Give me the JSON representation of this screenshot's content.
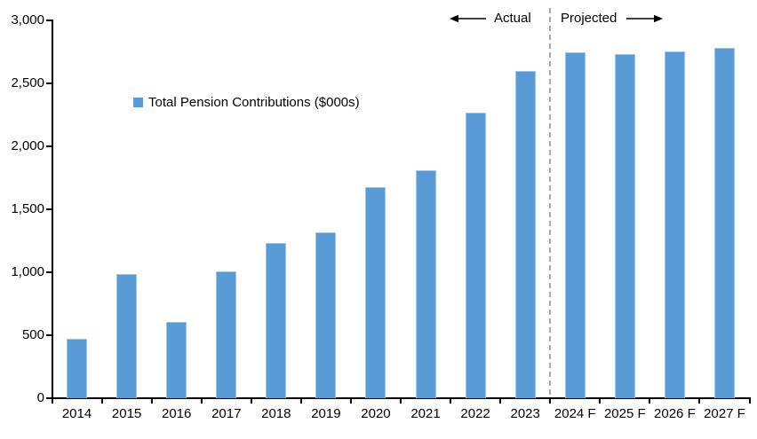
{
  "chart_data": {
    "type": "bar",
    "title": "",
    "legend_label": "Total Pension Contributions ($000s)",
    "categories": [
      "2014",
      "2015",
      "2016",
      "2017",
      "2018",
      "2019",
      "2020",
      "2021",
      "2022",
      "2023",
      "2024 F",
      "2025 F",
      "2026 F",
      "2027 F"
    ],
    "values": [
      475,
      985,
      605,
      1010,
      1230,
      1315,
      1675,
      1810,
      2265,
      2600,
      2745,
      2730,
      2755,
      2780
    ],
    "ylim": [
      0,
      3000
    ],
    "yticks": [
      0,
      500,
      1000,
      1500,
      2000,
      2500,
      3000
    ],
    "ytick_labels": [
      "0",
      "500",
      "1,000",
      "1,500",
      "2,000",
      "2,500",
      "3,000"
    ],
    "xlabel": "",
    "ylabel": "",
    "grid": false,
    "legend_position": "inside-upper-left",
    "bar_color": "#5B9BD5",
    "bar_border_color": "#9DC3E6",
    "divider_color": "#A9A9A9",
    "annotations": {
      "actual": "Actual",
      "projected": "Projected",
      "divider_between": [
        "2023",
        "2024 F"
      ]
    }
  }
}
